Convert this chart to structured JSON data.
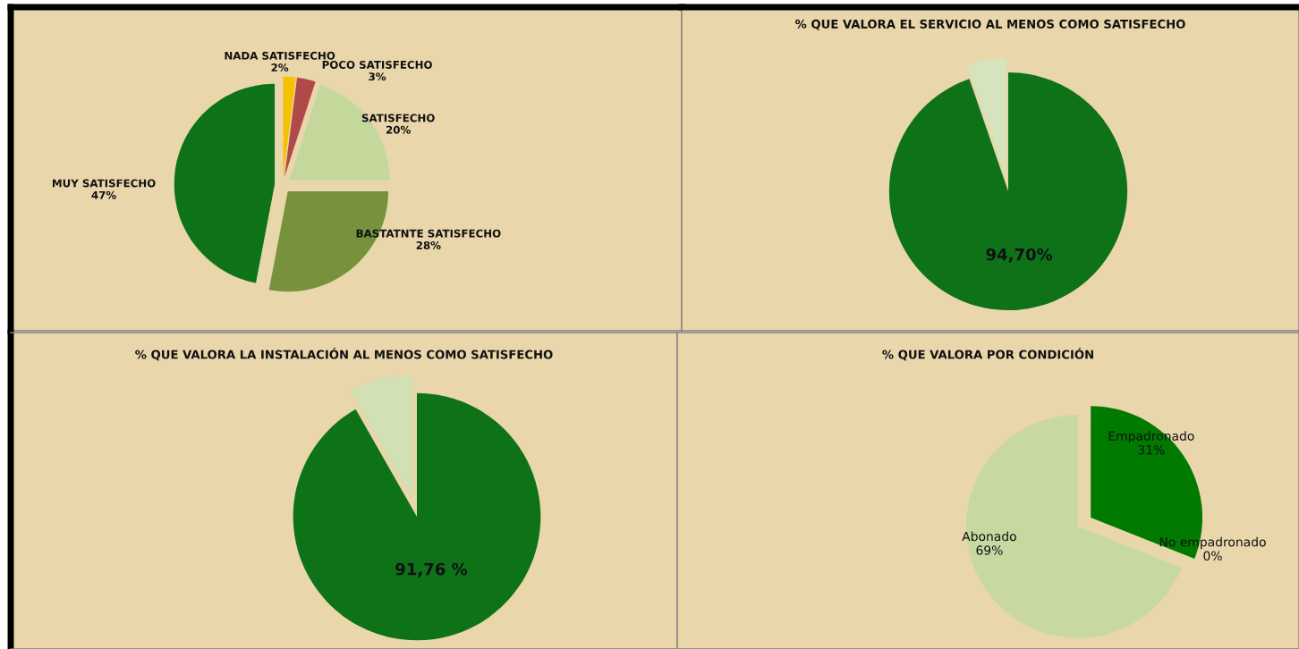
{
  "chart_data": [
    {
      "type": "pie",
      "categories": [
        "NADA SATISFECHO",
        "POCO SATISFECHO",
        "SATISFECHO",
        "BASTATNTE SATISFECHO",
        "MUY SATISFECHO"
      ],
      "values": [
        2,
        3,
        20,
        28,
        47
      ],
      "value_labels": [
        "2%",
        "3%",
        "20%",
        "28%",
        "47%"
      ],
      "colors": [
        "#f5c200",
        "#b04a48",
        "#c4d89c",
        "#76923c",
        "#0e7219"
      ]
    },
    {
      "type": "pie",
      "title": "% QUE VALORA EL SERVICIO AL MENOS COMO SATISFECHO",
      "categories": [
        null,
        null
      ],
      "values": [
        94.7,
        5.3
      ],
      "value_labels": [
        "94,70%",
        null
      ],
      "colors": [
        "#0e7219",
        "#d6e4bd"
      ]
    },
    {
      "type": "pie",
      "title": "% QUE VALORA LA INSTALACIÓN AL MENOS COMO SATISFECHO",
      "categories": [
        null,
        null
      ],
      "values": [
        91.76,
        8.24
      ],
      "value_labels": [
        "91,76 %",
        null
      ],
      "colors": [
        "#0e7219",
        "#d2e0b5"
      ]
    },
    {
      "type": "pie",
      "title": "% QUE VALORA POR CONDICIÓN",
      "categories": [
        "Empadronado",
        "No empadronado",
        "Abonado"
      ],
      "values": [
        31,
        0,
        69
      ],
      "value_labels": [
        "31%",
        "0%",
        "69%"
      ],
      "colors": [
        "#007a00",
        "#4f8f2f",
        "#c7d9a0"
      ]
    }
  ]
}
